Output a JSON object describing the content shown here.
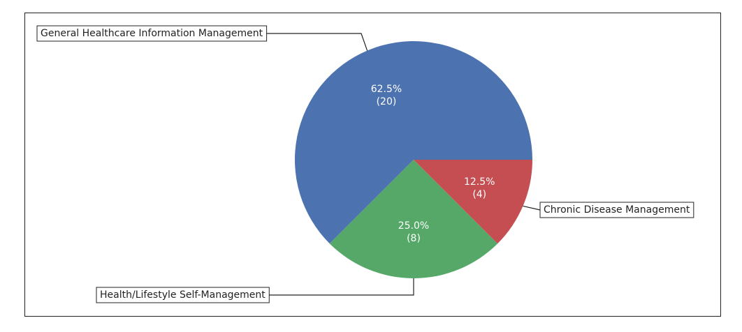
{
  "chart_data": {
    "type": "pie",
    "title": "",
    "slices": [
      {
        "label": "General Healthcare Information Management",
        "value": 20,
        "percent_label": "62.5%",
        "count_label": "(20)",
        "color": "#4c72b0"
      },
      {
        "label": "Health/Lifestyle Self-Management",
        "value": 8,
        "percent_label": "25.0%",
        "count_label": "(8)",
        "color": "#55a868"
      },
      {
        "label": "Chronic Disease Management",
        "value": 4,
        "percent_label": "12.5%",
        "count_label": "(4)",
        "color": "#c44e52"
      }
    ],
    "start_angle_deg": 0,
    "direction": "counterclockwise",
    "legend": "none",
    "annotations": "callout boxes with leader lines"
  }
}
